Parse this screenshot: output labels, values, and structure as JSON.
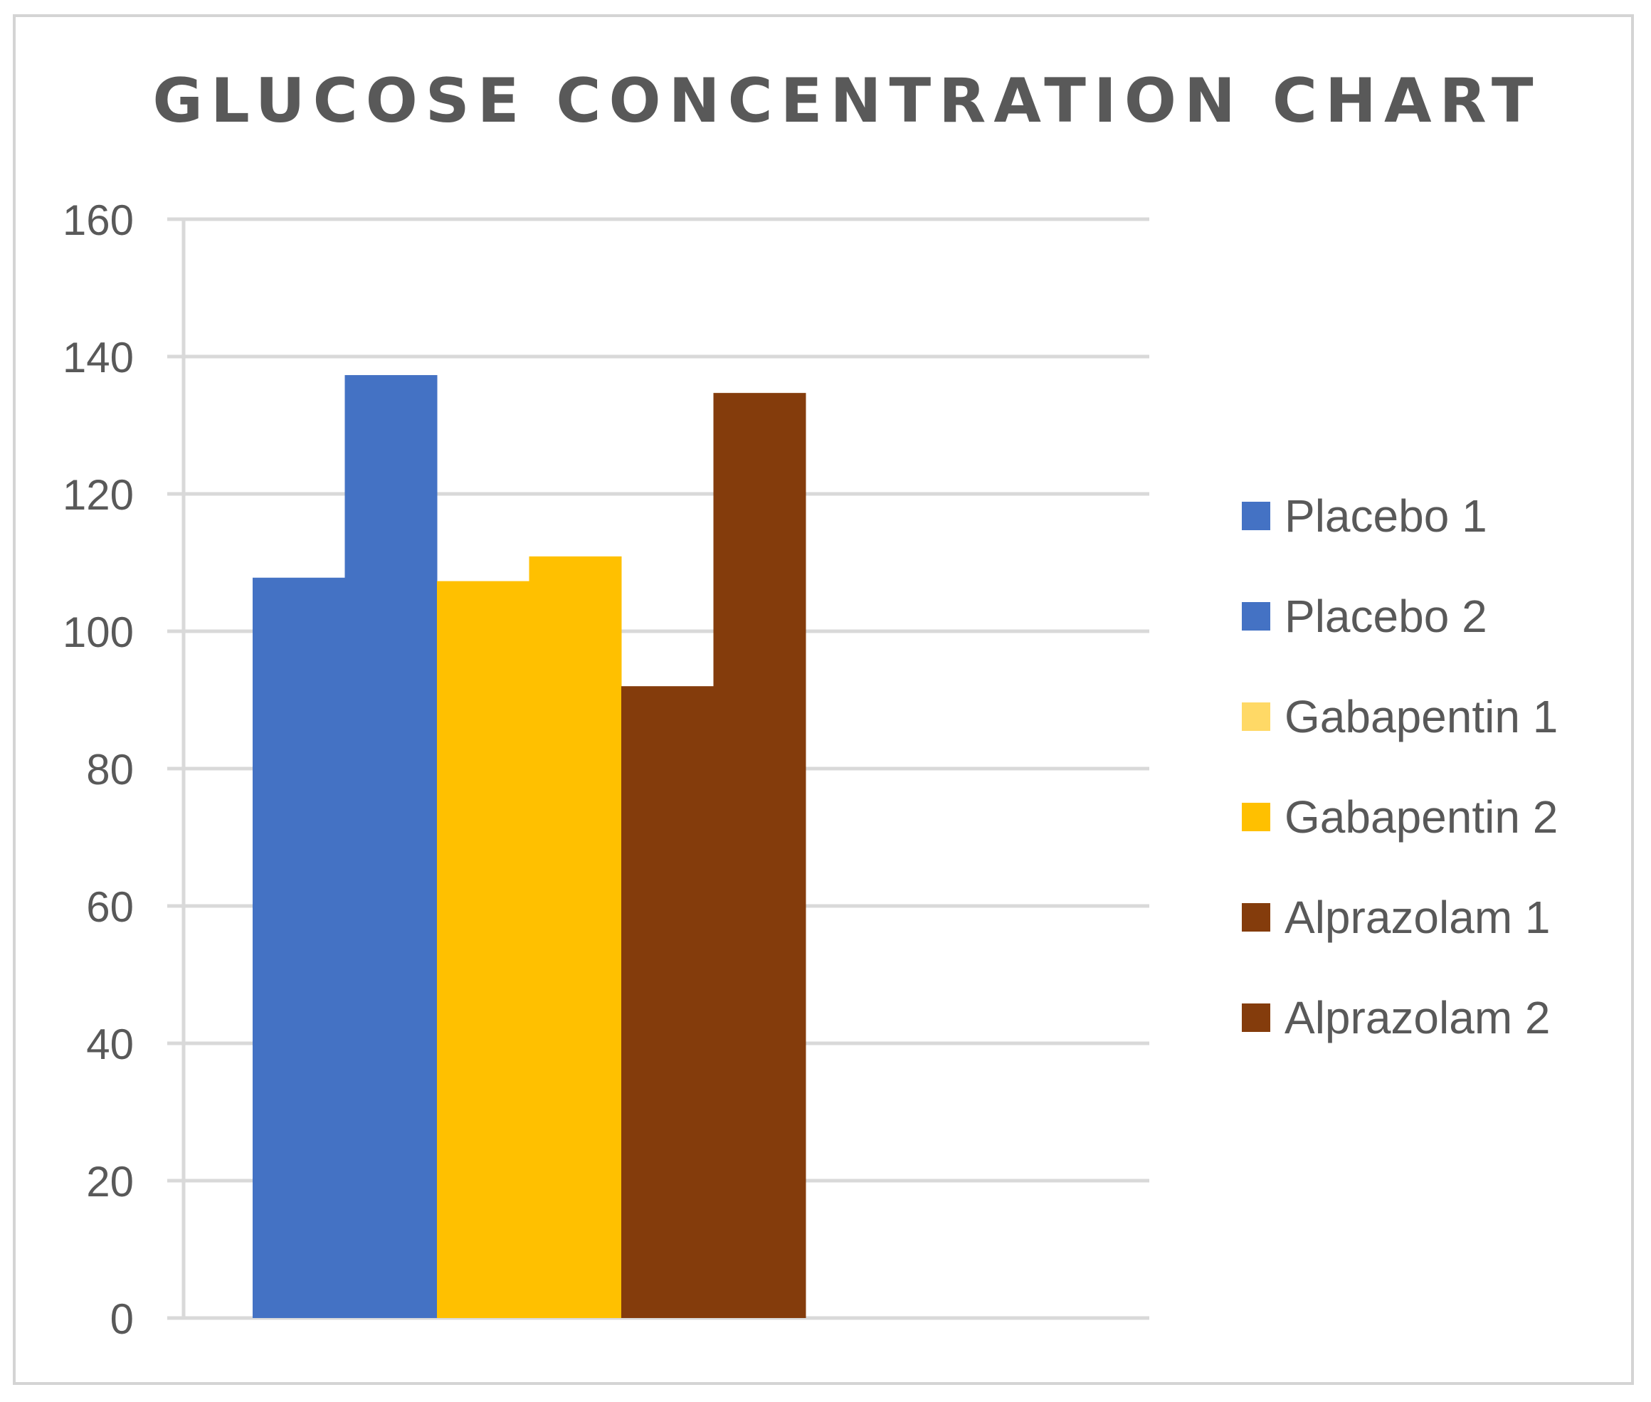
{
  "chart_data": {
    "type": "bar",
    "title": "GLUCOSE CONCENTRATION CHART",
    "xlabel": "",
    "ylabel": "",
    "ylim": [
      0,
      160
    ],
    "yticks": [
      0,
      20,
      40,
      60,
      80,
      100,
      120,
      140,
      160
    ],
    "grid": true,
    "legend_position": "right",
    "categories": [
      ""
    ],
    "series": [
      {
        "name": "Placebo 1",
        "values": [
          107.8
        ],
        "color": "#4472C4"
      },
      {
        "name": "Placebo 2",
        "values": [
          137.3
        ],
        "color": "#4472C4"
      },
      {
        "name": "Gabapentin 1",
        "values": [
          107.3
        ],
        "color": "#FFC000"
      },
      {
        "name": "Gabapentin 2",
        "values": [
          110.9
        ],
        "color": "#FFC000"
      },
      {
        "name": "Alprazolam 1",
        "values": [
          92.0
        ],
        "color": "#843C0C"
      },
      {
        "name": "Alprazolam 2",
        "values": [
          134.7
        ],
        "color": "#843C0C"
      }
    ],
    "legend_swatch_colors": [
      "#4472C4",
      "#4472C4",
      "#FFD966",
      "#FFC000",
      "#843C0C",
      "#843C0C"
    ]
  },
  "colors": {
    "gridline": "#D9D9D9",
    "axis_text": "#595959",
    "frame": "#D4D4D4"
  }
}
